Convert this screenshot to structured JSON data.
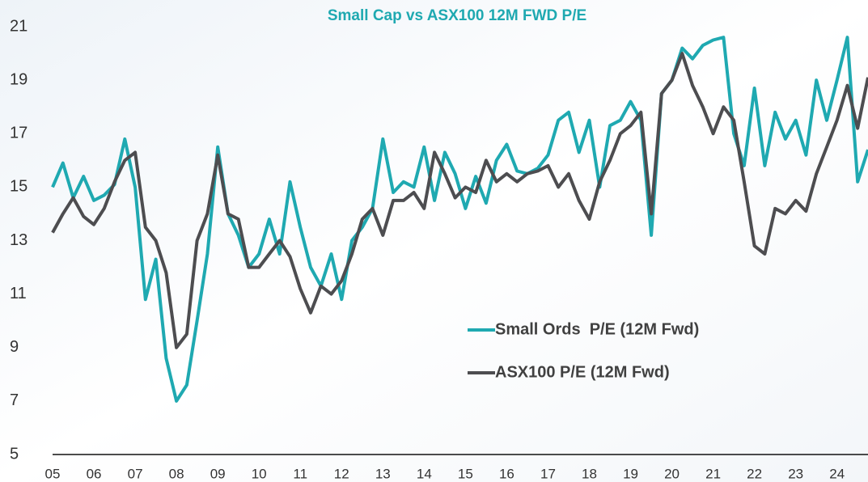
{
  "chart_data": {
    "type": "line",
    "title": "Small Cap vs ASX100 12M FWD P/E",
    "x": [
      2005,
      2005.25,
      2005.5,
      2005.75,
      2006,
      2006.25,
      2006.5,
      2006.75,
      2007,
      2007.25,
      2007.5,
      2007.75,
      2008,
      2008.25,
      2008.5,
      2008.75,
      2009,
      2009.25,
      2009.5,
      2009.75,
      2010,
      2010.25,
      2010.5,
      2010.75,
      2011,
      2011.25,
      2011.5,
      2011.75,
      2012,
      2012.25,
      2012.5,
      2012.75,
      2013,
      2013.25,
      2013.5,
      2013.75,
      2014,
      2014.25,
      2014.5,
      2014.75,
      2015,
      2015.25,
      2015.5,
      2015.75,
      2016,
      2016.25,
      2016.5,
      2016.75,
      2017,
      2017.25,
      2017.5,
      2017.75,
      2018,
      2018.25,
      2018.5,
      2018.75,
      2019,
      2019.25,
      2019.5,
      2019.75,
      2020,
      2020.25,
      2020.5,
      2020.75,
      2021,
      2021.25,
      2021.5,
      2021.75,
      2022,
      2022.25,
      2022.5,
      2022.75,
      2023,
      2023.25,
      2023.5,
      2023.75,
      2024,
      2024.25,
      2024.5,
      2024.75
    ],
    "series": [
      {
        "name": "Small Ords  P/E (12M Fwd)",
        "color": "#1fa9b1",
        "values": [
          15.0,
          15.9,
          14.6,
          15.4,
          14.5,
          14.7,
          15.1,
          16.8,
          15.0,
          10.8,
          12.3,
          8.6,
          7.0,
          7.6,
          10.0,
          12.5,
          16.5,
          14.0,
          13.2,
          12.0,
          12.5,
          13.8,
          12.5,
          15.2,
          13.5,
          12.0,
          11.3,
          12.5,
          10.8,
          13.0,
          13.5,
          14.2,
          16.8,
          14.8,
          15.2,
          15.0,
          16.5,
          14.5,
          16.3,
          15.5,
          14.2,
          15.4,
          14.4,
          16.0,
          16.6,
          15.6,
          15.5,
          15.7,
          16.2,
          17.5,
          17.8,
          16.3,
          17.5,
          15.0,
          17.3,
          17.5,
          18.2,
          17.5,
          13.2,
          18.5,
          19.0,
          20.2,
          19.8,
          20.3,
          20.5,
          20.6,
          17.0,
          15.8,
          18.7,
          15.8,
          17.8,
          16.8,
          17.5,
          16.2,
          19.0,
          17.5,
          19.0,
          20.6,
          15.2,
          16.4
        ]
      },
      {
        "name": "ASX100 P/E (12M Fwd)",
        "color": "#4d4d50",
        "values": [
          13.3,
          14.0,
          14.6,
          13.9,
          13.6,
          14.2,
          15.2,
          16.0,
          16.3,
          13.5,
          13.0,
          11.8,
          9.0,
          9.5,
          13.0,
          14.0,
          16.2,
          14.0,
          13.8,
          12.0,
          12.0,
          12.5,
          13.0,
          12.4,
          11.2,
          10.3,
          11.3,
          11.0,
          11.5,
          12.5,
          13.8,
          14.2,
          13.2,
          14.5,
          14.5,
          14.8,
          14.2,
          16.3,
          15.5,
          14.6,
          15.0,
          14.8,
          16.0,
          15.2,
          15.5,
          15.2,
          15.5,
          15.6,
          15.8,
          15.0,
          15.5,
          14.5,
          13.8,
          15.2,
          16.0,
          17.0,
          17.3,
          17.8,
          14.0,
          18.5,
          19.0,
          20.0,
          18.8,
          18.0,
          17.0,
          18.0,
          17.5,
          15.2,
          12.8,
          12.5,
          14.2,
          14.0,
          14.5,
          14.1,
          15.5,
          16.5,
          17.5,
          18.8,
          17.2,
          19.1
        ]
      }
    ],
    "xlim": [
      2005,
      2024.75
    ],
    "xticks": [
      {
        "value": 2005,
        "label": "05"
      },
      {
        "value": 2006,
        "label": "06"
      },
      {
        "value": 2007,
        "label": "07"
      },
      {
        "value": 2008,
        "label": "08"
      },
      {
        "value": 2009,
        "label": "09"
      },
      {
        "value": 2010,
        "label": "10"
      },
      {
        "value": 2011,
        "label": "11"
      },
      {
        "value": 2012,
        "label": "12"
      },
      {
        "value": 2013,
        "label": "13"
      },
      {
        "value": 2014,
        "label": "14"
      },
      {
        "value": 2015,
        "label": "15"
      },
      {
        "value": 2016,
        "label": "16"
      },
      {
        "value": 2017,
        "label": "17"
      },
      {
        "value": 2018,
        "label": "18"
      },
      {
        "value": 2019,
        "label": "19"
      },
      {
        "value": 2020,
        "label": "20"
      },
      {
        "value": 2021,
        "label": "21"
      },
      {
        "value": 2022,
        "label": "22"
      },
      {
        "value": 2023,
        "label": "23"
      },
      {
        "value": 2024,
        "label": "24"
      }
    ],
    "ylim": [
      5,
      21
    ],
    "yticks": [
      5,
      7,
      9,
      11,
      13,
      15,
      17,
      19,
      21
    ]
  }
}
